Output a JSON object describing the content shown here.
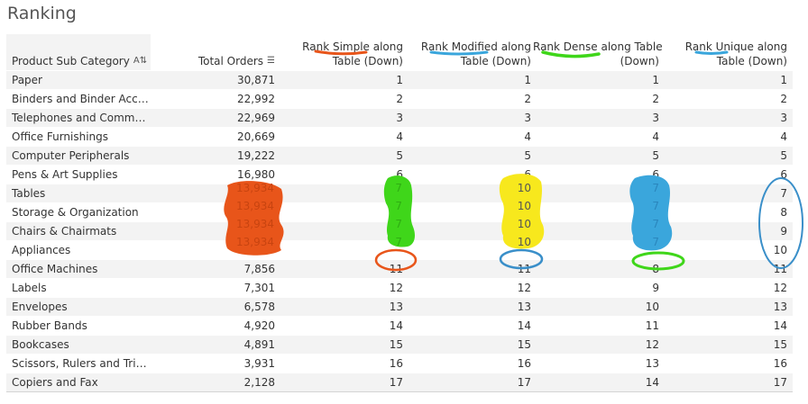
{
  "title": "Ranking",
  "headers": {
    "sub_category": "Product Sub Category",
    "sub_category_sort_icon": "sort-alpha-icon",
    "total_orders": "Total Orders",
    "total_orders_sort_icon": "sort-desc-bars-icon",
    "rank_simple": [
      "Rank Simple along",
      "Table (Down)"
    ],
    "rank_modified": [
      "Rank Modified along",
      "Table (Down)"
    ],
    "rank_dense": [
      "Rank Dense along Table",
      "(Down)"
    ],
    "rank_unique": [
      "Rank Unique along",
      "Table (Down)"
    ]
  },
  "rows": [
    {
      "name": "Paper",
      "orders": "30,871",
      "simple": "1",
      "modified": "1",
      "dense": "1",
      "unique": "1"
    },
    {
      "name": "Binders and Binder Acces..",
      "orders": "22,992",
      "simple": "2",
      "modified": "2",
      "dense": "2",
      "unique": "2"
    },
    {
      "name": "Telephones and Communi..",
      "orders": "22,969",
      "simple": "3",
      "modified": "3",
      "dense": "3",
      "unique": "3"
    },
    {
      "name": "Office Furnishings",
      "orders": "20,669",
      "simple": "4",
      "modified": "4",
      "dense": "4",
      "unique": "4"
    },
    {
      "name": "Computer Peripherals",
      "orders": "19,222",
      "simple": "5",
      "modified": "5",
      "dense": "5",
      "unique": "5"
    },
    {
      "name": "Pens & Art Supplies",
      "orders": "16,980",
      "simple": "6",
      "modified": "6",
      "dense": "6",
      "unique": "6"
    },
    {
      "name": "Tables",
      "orders": "13,934",
      "simple": "7",
      "modified": "10",
      "dense": "7",
      "unique": "7"
    },
    {
      "name": "Storage & Organization",
      "orders": "13,934",
      "simple": "7",
      "modified": "10",
      "dense": "7",
      "unique": "8"
    },
    {
      "name": "Chairs & Chairmats",
      "orders": "13,934",
      "simple": "7",
      "modified": "10",
      "dense": "7",
      "unique": "9"
    },
    {
      "name": "Appliances",
      "orders": "13,934",
      "simple": "7",
      "modified": "10",
      "dense": "7",
      "unique": "10"
    },
    {
      "name": "Office Machines",
      "orders": "7,856",
      "simple": "11",
      "modified": "11",
      "dense": "8",
      "unique": "11"
    },
    {
      "name": "Labels",
      "orders": "7,301",
      "simple": "12",
      "modified": "12",
      "dense": "9",
      "unique": "12"
    },
    {
      "name": "Envelopes",
      "orders": "6,578",
      "simple": "13",
      "modified": "13",
      "dense": "10",
      "unique": "13"
    },
    {
      "name": "Rubber Bands",
      "orders": "4,920",
      "simple": "14",
      "modified": "14",
      "dense": "11",
      "unique": "14"
    },
    {
      "name": "Bookcases",
      "orders": "4,891",
      "simple": "15",
      "modified": "15",
      "dense": "12",
      "unique": "15"
    },
    {
      "name": "Scissors, Rulers and Trim..",
      "orders": "3,931",
      "simple": "16",
      "modified": "16",
      "dense": "13",
      "unique": "16"
    },
    {
      "name": "Copiers and Fax",
      "orders": "2,128",
      "simple": "17",
      "modified": "17",
      "dense": "14",
      "unique": "17"
    }
  ],
  "annotation_colors": {
    "orange": "#e8551a",
    "green": "#3fd61a",
    "yellow": "#f7e81d",
    "blue": "#3aa6dc",
    "outline_blue": "#3a8fc9"
  }
}
